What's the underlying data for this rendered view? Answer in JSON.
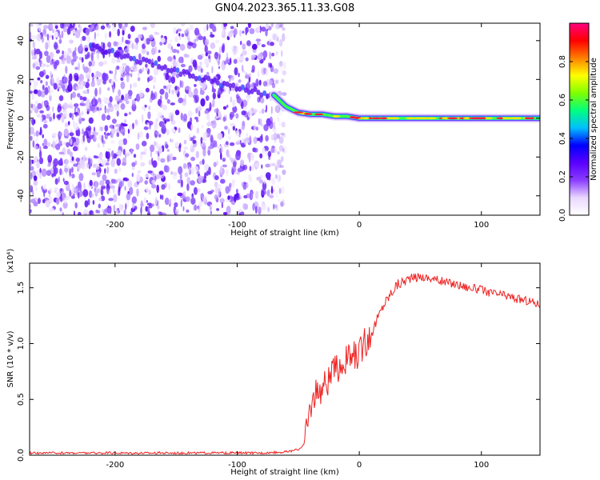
{
  "title": "GN04.2023.365.11.33.G08",
  "chart_data": [
    {
      "type": "heatmap",
      "xlabel": "Height of straight line (km)",
      "ylabel": "Frequency (Hz)",
      "xlim": [
        -270,
        148
      ],
      "ylim": [
        -50,
        49
      ],
      "x_ticks": [
        -200,
        -100,
        0,
        100
      ],
      "y_ticks": [
        -40,
        -20,
        0,
        20,
        40
      ],
      "colorbar": {
        "label": "Normalized spectral amplitude",
        "range": [
          0,
          1
        ],
        "ticks": [
          "0.0",
          "0.2",
          "0.4",
          "0.6",
          "0.8"
        ],
        "colors": [
          "#ffffff",
          "#e9d8ff",
          "#8a3cff",
          "#5a00ff",
          "#0000ff",
          "#00bfff",
          "#00ff80",
          "#80ff00",
          "#ffff00",
          "#ff8000",
          "#ff0000",
          "#ff0080"
        ]
      },
      "noise_region_x": [
        -270,
        -70
      ],
      "ridge": {
        "x": [
          -70,
          -60,
          -50,
          -40,
          -30,
          -20,
          -10,
          0,
          20,
          40,
          60,
          80,
          100,
          120,
          148
        ],
        "y": [
          12,
          6,
          3,
          2,
          2,
          1,
          1,
          0,
          0,
          0,
          0,
          0,
          0,
          0,
          0
        ]
      },
      "faint_trail": {
        "x": [
          -220,
          -180,
          -150,
          -120,
          -100,
          -80,
          -70
        ],
        "y": [
          37,
          30,
          24,
          19,
          16,
          13,
          12
        ]
      }
    },
    {
      "type": "line",
      "xlabel": "Height of straight line (km)",
      "ylabel": "SNR (10 * v/v)",
      "multiplier": "(x10⁴)",
      "xlim": [
        -270,
        148
      ],
      "ylim": [
        0,
        1.72
      ],
      "x_ticks": [
        -200,
        -100,
        0,
        100
      ],
      "y_ticks": [
        "0.0",
        "0.5",
        "1.0",
        "1.5"
      ],
      "series": [
        {
          "color": "#ee2222",
          "x": [
            -270,
            -200,
            -120,
            -80,
            -60,
            -50,
            -45,
            -42,
            -40,
            -35,
            -30,
            -20,
            -10,
            0,
            10,
            20,
            30,
            40,
            50,
            60,
            70,
            80,
            90,
            100,
            110,
            120,
            130,
            140,
            148
          ],
          "y": [
            0.02,
            0.02,
            0.02,
            0.02,
            0.03,
            0.05,
            0.1,
            0.3,
            0.45,
            0.55,
            0.62,
            0.75,
            0.85,
            0.92,
            1.1,
            1.35,
            1.52,
            1.58,
            1.6,
            1.58,
            1.55,
            1.53,
            1.5,
            1.48,
            1.45,
            1.43,
            1.4,
            1.38,
            1.35
          ]
        }
      ]
    }
  ]
}
